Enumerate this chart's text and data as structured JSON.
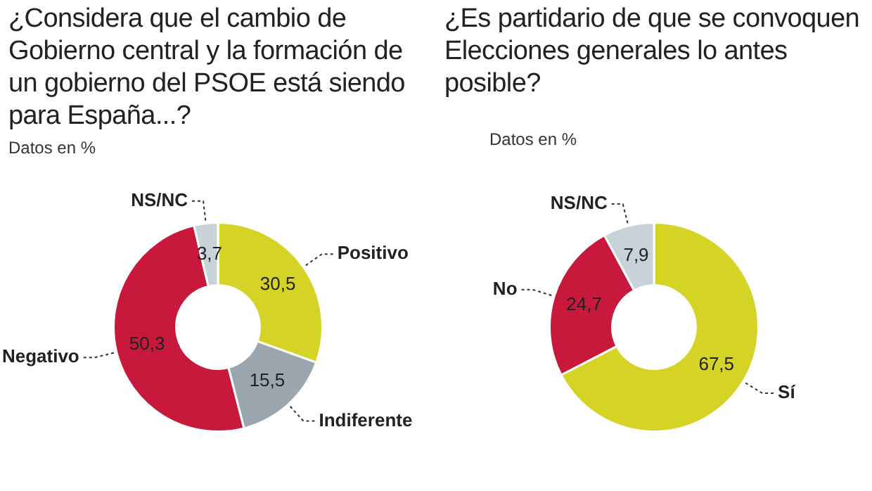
{
  "chart_data": [
    {
      "type": "donut",
      "title": "¿Considera que el cambio de Gobierno central y la formación de un gobierno del PSOE está siendo para España...?",
      "subtitle": "Datos en %",
      "categories": [
        "Positivo",
        "Indiferente",
        "Negativo",
        "NS/NC"
      ],
      "values": [
        30.5,
        15.5,
        50.3,
        3.7
      ],
      "value_labels": [
        "30,5",
        "15,5",
        "50,3",
        "3,7"
      ],
      "colors": [
        "#d5d426",
        "#9ba6ae",
        "#c8193c",
        "#c8d2d9"
      ]
    },
    {
      "type": "donut",
      "title": "¿Es partidario de que se convoquen Elecciones generales lo antes posible?",
      "subtitle": "Datos en %",
      "categories": [
        "Sí",
        "No",
        "NS/NC"
      ],
      "values": [
        67.5,
        24.7,
        7.9
      ],
      "value_labels": [
        "67,5",
        "24,7",
        "7,9"
      ],
      "colors": [
        "#d5d426",
        "#c8193c",
        "#c8d2d9"
      ]
    }
  ]
}
